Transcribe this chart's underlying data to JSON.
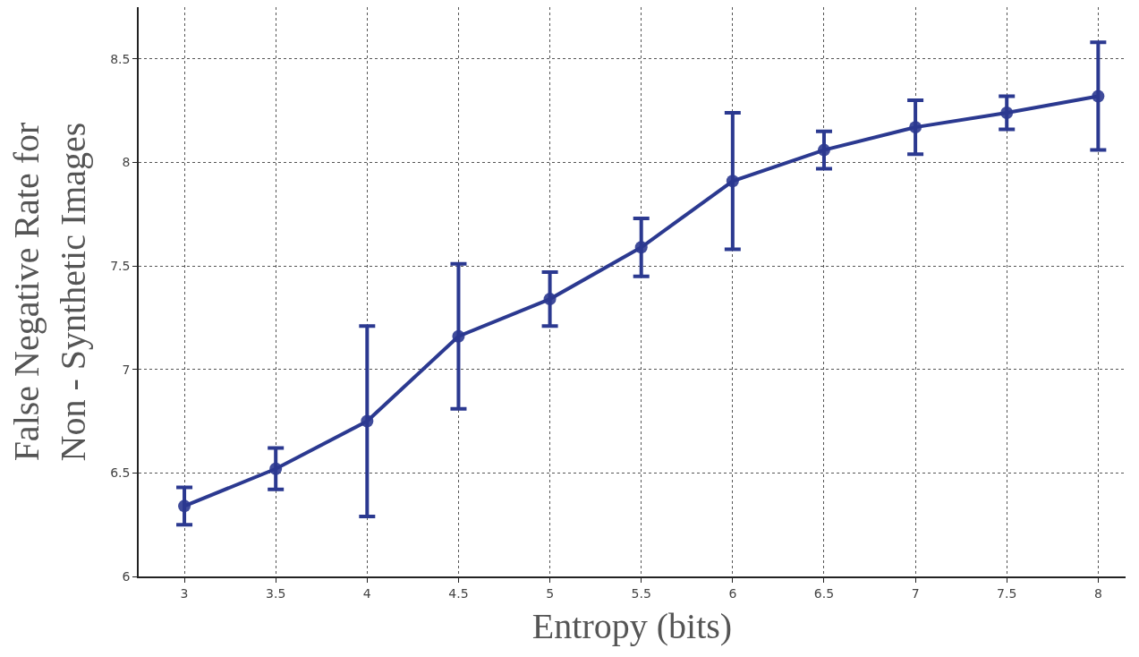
{
  "chart_data": {
    "type": "line",
    "xlabel": "Entropy (bits)",
    "ylabel": "False Negative Rate for\nNon - Synthetic Images",
    "x": [
      3,
      3.5,
      4,
      4.5,
      5,
      5.5,
      6,
      6.5,
      7,
      7.5,
      8
    ],
    "series": [
      {
        "color": "#2b3990",
        "values": [
          6.34,
          6.52,
          6.75,
          7.16,
          7.34,
          7.59,
          7.91,
          8.06,
          8.17,
          8.24,
          8.32
        ],
        "errors": [
          [
            6.25,
            6.43
          ],
          [
            6.42,
            6.62
          ],
          [
            6.29,
            7.21
          ],
          [
            6.81,
            7.51
          ],
          [
            7.21,
            7.47
          ],
          [
            7.45,
            7.73
          ],
          [
            7.58,
            8.24
          ],
          [
            7.97,
            8.15
          ],
          [
            8.04,
            8.3
          ],
          [
            8.16,
            8.32
          ],
          [
            8.06,
            8.58
          ]
        ]
      }
    ],
    "xlim": [
      2.75,
      8.15
    ],
    "xticks": [
      3,
      3.5,
      4,
      4.5,
      5,
      5.5,
      6,
      6.5,
      7,
      7.5,
      8
    ],
    "ylim": [
      6,
      8.75
    ],
    "yticks": [
      6,
      6.5,
      7,
      7.5,
      8,
      8.5
    ],
    "grid": true,
    "marker": "circle",
    "line_style": "solid"
  }
}
